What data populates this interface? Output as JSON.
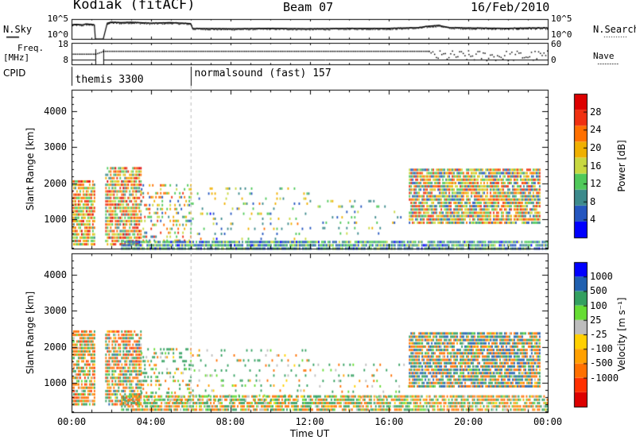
{
  "header": {
    "station": "Kodiak (fitACF)",
    "beam": "Beam 07",
    "date": "16/Feb/2010"
  },
  "chart_data": [
    {
      "type": "line",
      "panel": "noise",
      "left_label": "N.Sky",
      "right_label": "N.Search",
      "yticks_left": [
        "10^5",
        "10^0"
      ],
      "yticks_right": [
        "10^5",
        "10^0"
      ],
      "series": [
        {
          "name": "N.Sky",
          "style": "solid",
          "x": [
            0.0,
            0.25,
            0.5,
            0.75,
            1.0,
            1.15,
            1.2,
            1.3,
            1.5,
            1.6,
            1.8,
            2.0,
            2.5,
            3.0,
            4.0,
            5.0,
            6.0,
            6.1,
            8.0,
            10.0,
            12.0,
            14.0,
            16.0,
            17.5,
            18.0,
            18.5,
            19.0,
            20.0,
            22.0,
            23.0,
            24.0
          ],
          "y": [
            3.2,
            3.3,
            3.2,
            3.4,
            3.3,
            3.2,
            0.0,
            0.0,
            0.0,
            0.0,
            3.6,
            3.8,
            3.7,
            3.8,
            3.6,
            3.7,
            3.5,
            2.4,
            2.3,
            2.4,
            2.3,
            2.4,
            2.4,
            2.6,
            2.9,
            3.1,
            2.6,
            2.5,
            2.4,
            2.5,
            2.5
          ]
        },
        {
          "name": "N.Search",
          "style": "dotted"
        }
      ]
    },
    {
      "type": "line",
      "panel": "freq",
      "left_label": "Freq. [MHz]",
      "right_label": "Nave",
      "yticks_left": [
        "18",
        "8"
      ],
      "yticks_right": [
        "60",
        "0"
      ],
      "series": [
        {
          "name": "Freq.",
          "style": "solid",
          "x": [
            0.0,
            1.2,
            1.6,
            6.0,
            24.0
          ],
          "y": [
            10.0,
            10.0,
            10.0,
            10.0,
            10.0
          ]
        },
        {
          "name": "Nave",
          "style": "dotted",
          "x": [
            0.0,
            1.2,
            1.6,
            6.0,
            18.0,
            20.0,
            24.0
          ],
          "y": [
            30,
            30,
            38,
            38,
            38,
            20,
            30
          ]
        }
      ]
    },
    {
      "type": "table",
      "panel": "cpid",
      "label": "CPID",
      "segments": [
        {
          "start": 0.0,
          "end": 6.0,
          "text": "themis 3300"
        },
        {
          "start": 6.0,
          "end": 24.0,
          "text": "normalsound (fast) 157"
        }
      ]
    },
    {
      "type": "heatmap",
      "panel": "power",
      "ylabel": "Slant Range [km]",
      "ylim": [
        180,
        4600
      ],
      "yticks": [
        1000,
        2000,
        3000,
        4000
      ],
      "colorbar_label": "Power [dB]",
      "colorbar_ticks": [
        4,
        8,
        12,
        16,
        20,
        24,
        28
      ],
      "colorbar_range": [
        0,
        32
      ],
      "colors": [
        "#0000ff",
        "#2456c0",
        "#3c8a8c",
        "#4fc95a",
        "#c8d840",
        "#f0b000",
        "#ff7000",
        "#f03010",
        "#dd0000"
      ],
      "bands": [
        {
          "t": [
            0.0,
            1.2
          ],
          "r": [
            300,
            2050
          ],
          "dr": 92,
          "v": [
            10,
            30
          ],
          "d": 0.85
        },
        {
          "t": [
            1.7,
            3.5
          ],
          "r": [
            300,
            2450
          ],
          "dr": 92,
          "v": [
            8,
            30
          ],
          "d": 0.8
        },
        {
          "t": [
            3.5,
            6.0
          ],
          "r": [
            400,
            2000
          ],
          "dr": 110,
          "v": [
            4,
            26
          ],
          "d": 0.35
        },
        {
          "t": [
            6.0,
            12.0
          ],
          "r": [
            450,
            1950
          ],
          "dr": 140,
          "v": [
            3,
            22
          ],
          "d": 0.15
        },
        {
          "t": [
            2.5,
            24.0
          ],
          "r": [
            180,
            400
          ],
          "dr": 92,
          "v": [
            3,
            16
          ],
          "d": 0.9
        },
        {
          "t": [
            12.0,
            17.0
          ],
          "r": [
            600,
            1500
          ],
          "dr": 150,
          "v": [
            4,
            20
          ],
          "d": 0.12
        },
        {
          "t": [
            17.0,
            23.6
          ],
          "r": [
            900,
            2450
          ],
          "dr": 92,
          "v": [
            5,
            28
          ],
          "d": 0.85
        }
      ]
    },
    {
      "type": "heatmap",
      "panel": "velocity",
      "xlabel": "Time UT",
      "ylabel": "Slant Range [km]",
      "ylim": [
        180,
        4600
      ],
      "yticks": [
        1000,
        2000,
        3000,
        4000
      ],
      "xlim": [
        0,
        24
      ],
      "xticks": [
        "00:00",
        "04:00",
        "08:00",
        "12:00",
        "16:00",
        "20:00",
        "00:00"
      ],
      "colorbar_label": "Velocity [m s⁻¹]",
      "colorbar_ticks": [
        "1000",
        "500",
        "100",
        "25",
        "-25",
        "-100",
        "-500",
        "-1000"
      ],
      "colors": [
        "#dd0000",
        "#ff3000",
        "#ff7000",
        "#ffa000",
        "#ffd000",
        "#bdbdbd",
        "#66dd33",
        "#33a060",
        "#2060b0",
        "#0000ff"
      ],
      "bands": [
        {
          "t": [
            0.0,
            1.2
          ],
          "r": [
            400,
            2450
          ],
          "dr": 92,
          "v": [
            -600,
            300
          ],
          "d": 0.8
        },
        {
          "t": [
            1.7,
            3.5
          ],
          "r": [
            400,
            2450
          ],
          "dr": 92,
          "v": [
            -700,
            600
          ],
          "d": 0.75
        },
        {
          "t": [
            3.5,
            6.0
          ],
          "r": [
            500,
            2000
          ],
          "dr": 110,
          "v": [
            -300,
            500
          ],
          "d": 0.3
        },
        {
          "t": [
            6.0,
            12.0
          ],
          "r": [
            500,
            1950
          ],
          "dr": 140,
          "v": [
            -200,
            400
          ],
          "d": 0.15
        },
        {
          "t": [
            2.5,
            24.0
          ],
          "r": [
            250,
            700
          ],
          "dr": 92,
          "v": [
            -300,
            300
          ],
          "d": 0.8
        },
        {
          "t": [
            12.0,
            17.0
          ],
          "r": [
            600,
            1500
          ],
          "dr": 150,
          "v": [
            -200,
            300
          ],
          "d": 0.12
        },
        {
          "t": [
            17.0,
            23.6
          ],
          "r": [
            900,
            2450
          ],
          "dr": 92,
          "v": [
            -500,
            900
          ],
          "d": 0.85
        }
      ]
    }
  ]
}
